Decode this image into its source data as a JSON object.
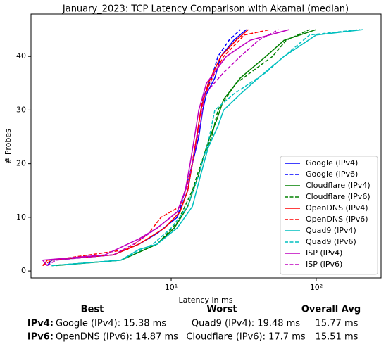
{
  "chart_data": {
    "type": "line",
    "title": "January_2023: TCP Latency Comparison with Akamai (median)",
    "x_label": "Latency in ms",
    "y_label": "# Probes",
    "xscale": "log",
    "xlim": [
      1.08,
      280
    ],
    "xticks": [
      {
        "value": 10,
        "label": "10¹"
      },
      {
        "value": 100,
        "label": "10²"
      }
    ],
    "ylim": [
      -1.3,
      47.9
    ],
    "yticks": [
      0,
      10,
      20,
      30,
      40
    ],
    "grid": false,
    "legend": "lower right",
    "series": [
      {
        "name": "Google (IPv4)",
        "color": "#0000ff",
        "linestyle": "solid",
        "x": [
          1.4,
          1.5,
          4,
          6,
          8,
          11,
          13,
          14,
          15.5,
          16.5,
          17.5,
          20,
          22,
          27,
          33
        ],
        "values": [
          1,
          2,
          3,
          5,
          7,
          10,
          15,
          20,
          25,
          30,
          33,
          36,
          40,
          43,
          45
        ]
      },
      {
        "name": "Google (IPv6)",
        "color": "#0000ff",
        "linestyle": "dashed",
        "x": [
          1.4,
          1.5,
          4,
          6,
          8,
          11,
          12.5,
          14,
          15,
          16,
          17,
          19,
          21,
          25,
          30
        ],
        "values": [
          1,
          2,
          3,
          5,
          7,
          10,
          15,
          20,
          25,
          30,
          33,
          36,
          40,
          43,
          45
        ]
      },
      {
        "name": "Cloudflare (IPv4)",
        "color": "#008000",
        "linestyle": "solid",
        "x": [
          1.6,
          4.5,
          8,
          10.5,
          13,
          15.5,
          17,
          18.5,
          20.5,
          23,
          30,
          45,
          60,
          100
        ],
        "values": [
          1,
          2,
          5,
          8,
          12,
          18,
          22,
          25,
          28,
          32,
          36,
          40,
          43,
          45
        ]
      },
      {
        "name": "Cloudflare (IPv6)",
        "color": "#008000",
        "linestyle": "dashed",
        "x": [
          1.5,
          4.5,
          8,
          11,
          14,
          16,
          19,
          21,
          28,
          50,
          62,
          90
        ],
        "values": [
          1,
          2,
          5,
          9,
          15,
          20,
          25,
          30,
          35,
          40,
          43,
          45
        ]
      },
      {
        "name": "OpenDNS (IPv4)",
        "color": "#ff0000",
        "linestyle": "solid",
        "x": [
          1.3,
          1.4,
          4,
          6,
          9,
          11.5,
          13,
          14,
          15,
          16,
          18,
          22,
          28,
          34
        ],
        "values": [
          1,
          2,
          3,
          5,
          8,
          11,
          15,
          20,
          25,
          30,
          35,
          40,
          43,
          45
        ]
      },
      {
        "name": "OpenDNS (IPv6)",
        "color": "#ff0000",
        "linestyle": "dashed",
        "x": [
          1.3,
          1.5,
          5,
          7,
          8.5,
          11.5,
          13.5,
          15,
          16.5,
          20,
          23,
          32,
          48
        ],
        "values": [
          1,
          2,
          4,
          7,
          10,
          12,
          18,
          25,
          32,
          37,
          40,
          44,
          45
        ]
      },
      {
        "name": "Quad9 (IPv4)",
        "color": "#00bfbf",
        "linestyle": "solid",
        "x": [
          1.5,
          4.5,
          6,
          8,
          11,
          14,
          16,
          18,
          21,
          23,
          30,
          40,
          60,
          100,
          210
        ],
        "values": [
          1,
          2,
          4,
          5,
          8,
          12,
          18,
          23,
          27,
          30,
          33,
          36,
          40,
          44,
          45
        ]
      },
      {
        "name": "Quad9 (IPv6)",
        "color": "#00bfbf",
        "linestyle": "dashed",
        "x": [
          1.5,
          4.5,
          7.5,
          10,
          13,
          15.5,
          18,
          20,
          27,
          45,
          60,
          90,
          200
        ],
        "values": [
          1,
          2,
          5,
          8,
          12,
          18,
          24,
          30,
          33,
          37,
          40,
          44,
          45
        ]
      },
      {
        "name": "ISP (IPv4)",
        "color": "#bf00bf",
        "linestyle": "solid",
        "x": [
          1.4,
          1.3,
          3.5,
          6,
          8,
          11,
          12.5,
          13.5,
          14.5,
          15.5,
          17.5,
          24,
          35,
          65
        ],
        "values": [
          1,
          2,
          3,
          6,
          8,
          11,
          15,
          20,
          25,
          30,
          35,
          40,
          43,
          45
        ]
      },
      {
        "name": "ISP (IPv6)",
        "color": "#bf00bf",
        "linestyle": "dashed",
        "x": [
          1.4,
          1.6,
          4,
          5.5,
          8,
          11,
          13,
          14.5,
          16,
          17,
          23,
          30,
          40,
          55
        ],
        "values": [
          1,
          2,
          3,
          5,
          8,
          11,
          16,
          22,
          28,
          33,
          37,
          40,
          43,
          45
        ]
      }
    ]
  },
  "summary": {
    "headers": [
      "Best",
      "Worst",
      "Overall Avg"
    ],
    "rows": [
      [
        "IPv4:",
        "Google (IPv4): 15.38 ms",
        "Quad9 (IPv4): 19.48 ms",
        "15.77 ms"
      ],
      [
        "IPv6:",
        "OpenDNS (IPv6): 14.87 ms",
        "Cloudflare (IPv6): 17.7 ms",
        "15.51 ms"
      ]
    ]
  }
}
